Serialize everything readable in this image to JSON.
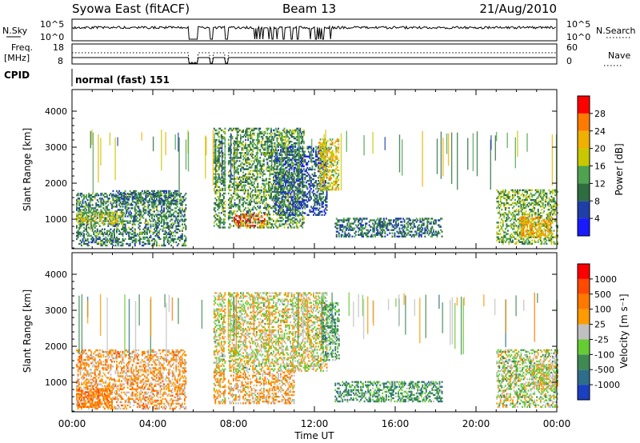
{
  "header": {
    "station": "Syowa East (fitACF)",
    "beam": "Beam 13",
    "date": "21/Aug/2010"
  },
  "status_panel": {
    "nsky_label": "N.Sky",
    "nsky_ticks": [
      "10^5",
      "10^0"
    ],
    "nsearch_label": "N.Search",
    "nsearch_ticks": [
      "10^5",
      "10^0"
    ],
    "freq_label_1": "Freq.",
    "freq_label_2": "[MHz]",
    "freq_ticks": [
      "18",
      "8"
    ],
    "nave_label": "Nave",
    "nave_ticks": [
      "60",
      "0"
    ],
    "cpid_label": "CPID",
    "cpid_value": "normal (fast) 151"
  },
  "chart_data": [
    {
      "type": "heatmap",
      "panel": "power",
      "ylabel": "Slant Range [km]",
      "xlabel": "",
      "xlim": [
        0,
        24
      ],
      "ylim": [
        180,
        4600
      ],
      "y_ticks": [
        "1000",
        "2000",
        "3000",
        "4000"
      ],
      "colorbar": {
        "label": "Power [dB]",
        "ticks": [
          "4",
          "8",
          "12",
          "16",
          "20",
          "24",
          "28"
        ],
        "colors": [
          "#1a1aff",
          "#1f3fa8",
          "#2e6d3f",
          "#4fa350",
          "#c8c800",
          "#f0b000",
          "#ff7a00",
          "#ff0000"
        ]
      },
      "regions": [
        {
          "t": [
            0.2,
            5.6
          ],
          "r": [
            250,
            1700
          ],
          "level": 0.35
        },
        {
          "t": [
            0.2,
            2.5
          ],
          "r": [
            850,
            1200
          ],
          "level": 0.55
        },
        {
          "t": [
            2.0,
            5.2
          ],
          "r": [
            1400,
            1800
          ],
          "level": 0.3
        },
        {
          "t": [
            7.0,
            11.5
          ],
          "r": [
            750,
            3500
          ],
          "level": 0.4
        },
        {
          "t": [
            8.0,
            9.6
          ],
          "r": [
            800,
            1150
          ],
          "level": 0.85
        },
        {
          "t": [
            10.0,
            12.6
          ],
          "r": [
            1100,
            3000
          ],
          "level": 0.25
        },
        {
          "t": [
            12.2,
            13.2
          ],
          "r": [
            1800,
            3200
          ],
          "level": 0.6
        },
        {
          "t": [
            13.0,
            18.3
          ],
          "r": [
            500,
            1000
          ],
          "level": 0.3
        },
        {
          "t": [
            21.0,
            24.0
          ],
          "r": [
            300,
            1800
          ],
          "level": 0.45
        },
        {
          "t": [
            22.2,
            23.8
          ],
          "r": [
            500,
            1050
          ],
          "level": 0.7
        }
      ]
    },
    {
      "type": "heatmap",
      "panel": "velocity",
      "ylabel": "Slant Range [km]",
      "xlabel": "Time UT",
      "xlim": [
        0,
        24
      ],
      "ylim": [
        180,
        4600
      ],
      "x_ticks": [
        "00:00",
        "04:00",
        "08:00",
        "12:00",
        "16:00",
        "20:00",
        "00:00"
      ],
      "y_ticks": [
        "1000",
        "2000",
        "3000",
        "4000"
      ],
      "colorbar": {
        "label": "Velocity [m s⁻¹]",
        "ticks": [
          "1000",
          "500",
          "100",
          "25",
          "-25",
          "-100",
          "-500",
          "-1000"
        ],
        "colors": [
          "#1a3fbf",
          "#2f6e8a",
          "#3e8a52",
          "#66cc33",
          "#c0c0c0",
          "#ff9a00",
          "#ff7800",
          "#ff4a00",
          "#ff0000"
        ]
      },
      "regions": [
        {
          "t": [
            0.2,
            5.6
          ],
          "r": [
            250,
            1900
          ],
          "level": 0.62
        },
        {
          "t": [
            0.2,
            2.0
          ],
          "r": [
            300,
            800
          ],
          "level": 0.7
        },
        {
          "t": [
            7.0,
            12.6
          ],
          "r": [
            1300,
            3500
          ],
          "level": 0.5
        },
        {
          "t": [
            7.0,
            11.0
          ],
          "r": [
            400,
            1300
          ],
          "level": 0.6
        },
        {
          "t": [
            12.4,
            13.2
          ],
          "r": [
            1600,
            3200
          ],
          "level": 0.32
        },
        {
          "t": [
            13.0,
            18.3
          ],
          "r": [
            450,
            1000
          ],
          "level": 0.3
        },
        {
          "t": [
            21.0,
            24.0
          ],
          "r": [
            300,
            1900
          ],
          "level": 0.45
        },
        {
          "t": [
            22.8,
            24.0
          ],
          "r": [
            800,
            1500
          ],
          "level": 0.5
        }
      ]
    }
  ],
  "colors": {
    "frame": "#000000",
    "background": "#ffffff"
  }
}
